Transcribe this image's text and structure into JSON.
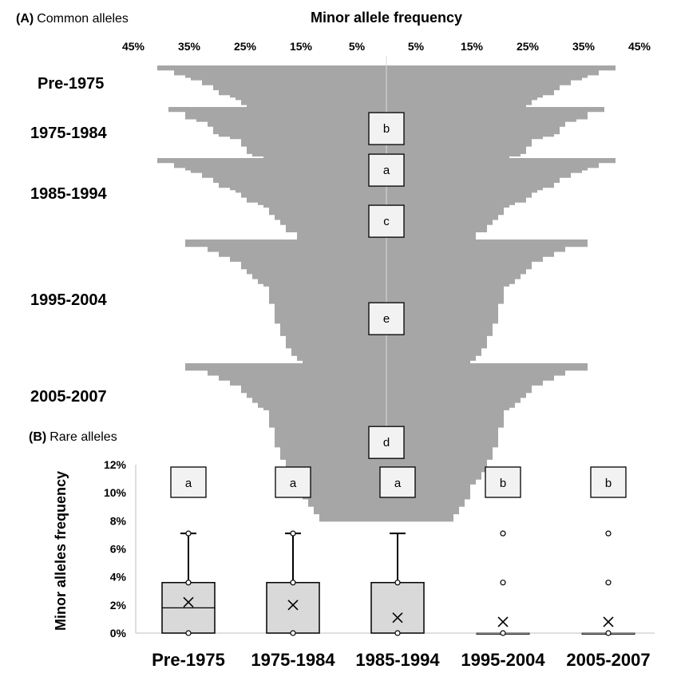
{
  "chart_data": [
    {
      "type": "area",
      "panel_label": "(A)",
      "title": "Common alleles",
      "xlabel": "Minor allele frequency",
      "x_ticks": [
        "45%",
        "35%",
        "25%",
        "15%",
        "5%",
        "5%",
        "15%",
        "25%",
        "35%",
        "45%"
      ],
      "xlim": [
        -45,
        45
      ],
      "series": [
        {
          "name": "Pre-1975",
          "letter": "b",
          "minor_allele_frequency_percent": [
            41,
            41,
            38,
            38,
            36,
            35,
            33,
            33,
            31,
            31,
            30,
            30,
            28,
            27,
            26,
            26,
            25,
            25,
            23,
            22,
            21,
            21,
            21,
            20,
            20,
            19,
            19,
            18,
            18,
            18,
            16,
            16,
            16,
            16,
            16,
            15,
            15,
            15,
            15,
            15,
            15,
            14,
            14,
            13,
            12,
            12,
            11,
            11,
            11,
            11,
            10
          ]
        },
        {
          "name": "1975-1984",
          "letter": "a",
          "minor_allele_frequency_percent": [
            39,
            39,
            36,
            36,
            36,
            34,
            32,
            32,
            31,
            31,
            31,
            30,
            28,
            26,
            26,
            26,
            25,
            25,
            25,
            24,
            22,
            22,
            21,
            21,
            21,
            20,
            19,
            19,
            19,
            18,
            17,
            17,
            16,
            16,
            16,
            15,
            15,
            15,
            15,
            15,
            15,
            14,
            13,
            13,
            13,
            12,
            12,
            11,
            11,
            11,
            10
          ]
        },
        {
          "name": "1985-1994",
          "letter": "c",
          "minor_allele_frequency_percent": [
            41,
            41,
            38,
            38,
            36,
            35,
            33,
            33,
            31,
            31,
            30,
            30,
            28,
            27,
            26,
            26,
            25,
            25,
            23,
            22,
            21,
            21,
            21,
            20,
            20,
            19,
            19,
            18,
            18,
            18,
            16,
            16,
            16,
            16,
            16,
            15,
            15,
            15,
            15,
            15,
            15,
            14,
            14,
            13,
            12,
            12,
            11,
            11,
            11,
            11,
            10
          ]
        },
        {
          "name": "1995-2004",
          "letter": "e",
          "minor_allele_frequency_percent": [
            36,
            36,
            36,
            32,
            32,
            30,
            30,
            28,
            28,
            26,
            26,
            26,
            25,
            25,
            24,
            24,
            23,
            23,
            22,
            21,
            21,
            21,
            21,
            21,
            21,
            21,
            20,
            20,
            20,
            20,
            20,
            20,
            20,
            20,
            19,
            19,
            19,
            19,
            19,
            18,
            18,
            18,
            18,
            18,
            17,
            17,
            17,
            16,
            16,
            15,
            15,
            15,
            15,
            15,
            15,
            14,
            14,
            14,
            13,
            13,
            13,
            12,
            12,
            12
          ]
        },
        {
          "name": "2005-2007",
          "letter": "d",
          "minor_allele_frequency_percent": [
            36,
            36,
            36,
            32,
            32,
            30,
            30,
            28,
            28,
            26,
            26,
            26,
            25,
            25,
            24,
            24,
            23,
            23,
            22,
            21,
            21,
            21,
            21,
            21,
            21,
            21,
            20,
            20,
            20,
            20,
            20,
            20,
            20,
            20,
            19,
            19,
            19,
            19,
            19,
            18,
            18,
            18,
            18,
            18,
            17,
            17,
            17,
            16,
            16,
            15,
            15,
            15,
            15,
            15,
            15,
            14,
            14,
            14,
            13,
            13,
            13,
            12,
            12,
            12
          ]
        }
      ],
      "fill_color": "#a6a6a6"
    },
    {
      "type": "box",
      "panel_label": "(B)",
      "title": "Rare alleles",
      "ylabel": "Minor alleles frequency",
      "ylim": [
        0,
        12
      ],
      "y_ticks": [
        "0%",
        "2%",
        "4%",
        "6%",
        "8%",
        "10%",
        "12%"
      ],
      "categories": [
        "Pre-1975",
        "1975-1984",
        "1985-1994",
        "1995-2004",
        "2005-2007"
      ],
      "letters": [
        "a",
        "a",
        "a",
        "b",
        "b"
      ],
      "boxes": [
        {
          "q1": 0,
          "median": 1.8,
          "q3": 3.6,
          "whisker_low": 0,
          "whisker_high": 7.1,
          "mean": 2.2,
          "points": [
            0,
            3.6,
            7.1
          ]
        },
        {
          "q1": 0,
          "median": 0,
          "q3": 3.6,
          "whisker_low": 0,
          "whisker_high": 7.1,
          "mean": 2.0,
          "points": [
            0,
            3.6,
            7.1
          ]
        },
        {
          "q1": 0,
          "median": 0,
          "q3": 3.6,
          "whisker_low": 0,
          "whisker_high": 7.1,
          "mean": 1.1,
          "points": [
            0,
            3.6
          ]
        },
        {
          "q1": 0,
          "median": 0,
          "q3": 0,
          "whisker_low": 0,
          "whisker_high": 0,
          "mean": 0.8,
          "points": [
            0,
            3.6,
            7.1
          ]
        },
        {
          "q1": 0,
          "median": 0,
          "q3": 0,
          "whisker_low": 0,
          "whisker_high": 0,
          "mean": 0.8,
          "points": [
            0,
            3.6,
            7.1
          ]
        }
      ],
      "box_fill": "#d9d9d9",
      "grid": false,
      "legend": "none"
    }
  ]
}
